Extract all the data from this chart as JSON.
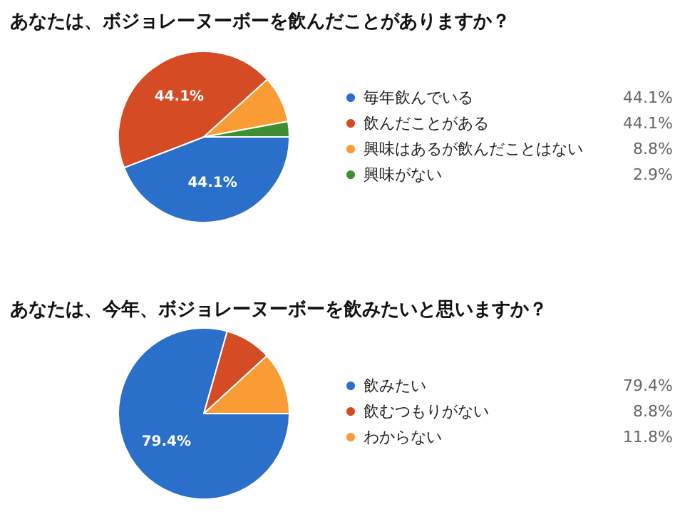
{
  "chart_data": [
    {
      "type": "pie",
      "title": "あなたは、ボジョレーヌーボーを飲んだことがありますか？",
      "categories": [
        "毎年飲んでいる",
        "飲んだことがある",
        "興味はあるが飲んだことはない",
        "興味がない"
      ],
      "values": [
        44.1,
        44.1,
        8.8,
        2.9
      ],
      "colors": [
        "#2a6fc9",
        "#d44b24",
        "#f89c33",
        "#3e8f2f"
      ],
      "value_labels": [
        "44.1%",
        "44.1%",
        "8.8%",
        "2.9%"
      ],
      "legend": "right"
    },
    {
      "type": "pie",
      "title": "あなたは、今年、ボジョレーヌーボーを飲みたいと思いますか？",
      "categories": [
        "飲みたい",
        "飲むつもりがない",
        "わからない"
      ],
      "values": [
        79.4,
        8.8,
        11.8
      ],
      "colors": [
        "#2a6fc9",
        "#d44b24",
        "#f89c33"
      ],
      "value_labels": [
        "79.4%",
        "8.8%",
        "11.8%"
      ],
      "legend": "right"
    }
  ]
}
